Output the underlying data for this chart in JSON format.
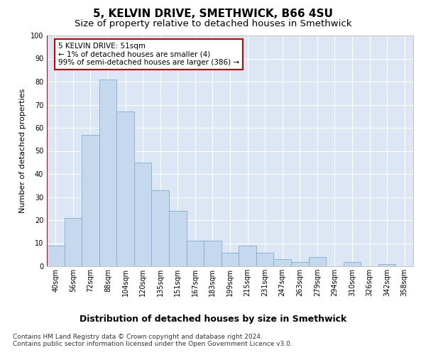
{
  "title": "5, KELVIN DRIVE, SMETHWICK, B66 4SU",
  "subtitle": "Size of property relative to detached houses in Smethwick",
  "xlabel": "Distribution of detached houses by size in Smethwick",
  "ylabel": "Number of detached properties",
  "categories": [
    "40sqm",
    "56sqm",
    "72sqm",
    "88sqm",
    "104sqm",
    "120sqm",
    "135sqm",
    "151sqm",
    "167sqm",
    "183sqm",
    "199sqm",
    "215sqm",
    "231sqm",
    "247sqm",
    "263sqm",
    "279sqm",
    "294sqm",
    "310sqm",
    "326sqm",
    "342sqm",
    "358sqm"
  ],
  "values": [
    9,
    21,
    57,
    81,
    67,
    45,
    33,
    24,
    11,
    11,
    6,
    9,
    6,
    3,
    2,
    4,
    0,
    2,
    0,
    1,
    0
  ],
  "bar_color": "#c5d8ed",
  "bar_edge_color": "#7aaed4",
  "annotation_text_line1": "5 KELVIN DRIVE: 51sqm",
  "annotation_text_line2": "← 1% of detached houses are smaller (4)",
  "annotation_text_line3": "99% of semi-detached houses are larger (386) →",
  "annotation_box_facecolor": "#ffffff",
  "annotation_box_edgecolor": "#cc0000",
  "red_line_color": "#cc0000",
  "ylim": [
    0,
    100
  ],
  "yticks": [
    0,
    10,
    20,
    30,
    40,
    50,
    60,
    70,
    80,
    90,
    100
  ],
  "fig_facecolor": "#ffffff",
  "axes_facecolor": "#dce6f5",
  "grid_color": "#ffffff",
  "footer_line1": "Contains HM Land Registry data © Crown copyright and database right 2024.",
  "footer_line2": "Contains public sector information licensed under the Open Government Licence v3.0.",
  "title_fontsize": 11,
  "subtitle_fontsize": 9.5,
  "xlabel_fontsize": 9,
  "ylabel_fontsize": 8,
  "tick_fontsize": 7,
  "annotation_fontsize": 7.5,
  "footer_fontsize": 6.5
}
